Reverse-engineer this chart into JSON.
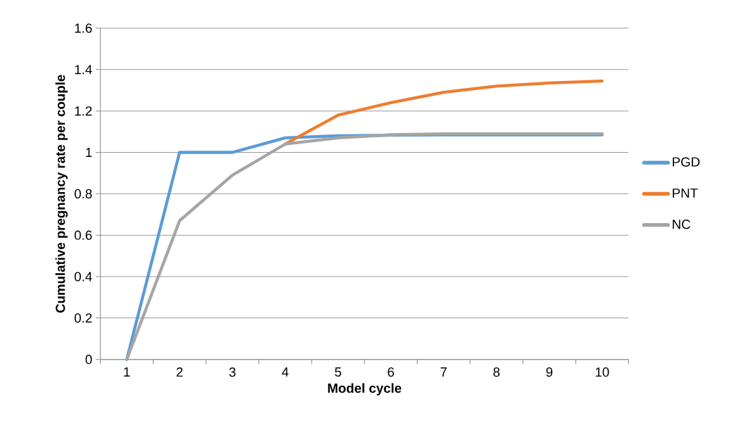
{
  "chart_data": {
    "type": "line",
    "xlabel": "Model cycle",
    "ylabel": "Cumulative pregnancy rate per couple",
    "categories": [
      "1",
      "2",
      "3",
      "4",
      "5",
      "6",
      "7",
      "8",
      "9",
      "10"
    ],
    "series": [
      {
        "name": "PGD",
        "color": "#5b9bd5",
        "values": [
          0,
          1.0,
          1.0,
          1.07,
          1.08,
          1.083,
          1.085,
          1.085,
          1.085,
          1.085
        ]
      },
      {
        "name": "PNT",
        "color": "#ed7d31",
        "values": [
          null,
          null,
          null,
          1.04,
          1.18,
          1.24,
          1.29,
          1.32,
          1.335,
          1.345
        ]
      },
      {
        "name": "NC",
        "color": "#a5a5a5",
        "values": [
          0,
          0.67,
          0.89,
          1.04,
          1.07,
          1.085,
          1.09,
          1.09,
          1.09,
          1.09
        ]
      }
    ],
    "ylim": [
      0,
      1.6
    ],
    "yticks": [
      0,
      0.2,
      0.4,
      0.6,
      0.8,
      1,
      1.2,
      1.4,
      1.6
    ],
    "grid": "y",
    "legend": "right",
    "marker": "none",
    "line_style": "solid"
  }
}
